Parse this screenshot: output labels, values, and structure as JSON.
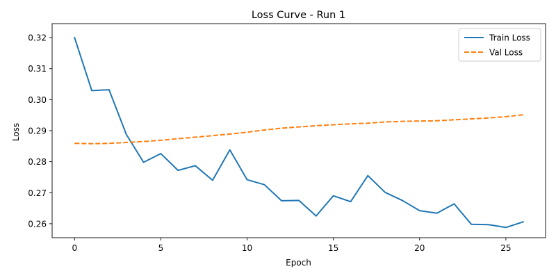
{
  "chart_data": {
    "type": "line",
    "title": "Loss Curve - Run 1",
    "xlabel": "Epoch",
    "ylabel": "Loss",
    "xlim": [
      -1.3,
      27.3
    ],
    "ylim": [
      0.2555,
      0.3245
    ],
    "xticks": [
      0,
      5,
      10,
      15,
      20,
      25
    ],
    "yticks": [
      0.26,
      0.27,
      0.28,
      0.29,
      0.3,
      0.31,
      0.32
    ],
    "ytick_labels": [
      "0.26",
      "0.27",
      "0.28",
      "0.29",
      "0.30",
      "0.31",
      "0.32"
    ],
    "xtick_labels": [
      "0",
      "5",
      "10",
      "15",
      "20",
      "25"
    ],
    "legend_position": "top-right",
    "grid": false,
    "x": [
      0,
      1,
      2,
      3,
      4,
      5,
      6,
      7,
      8,
      9,
      10,
      11,
      12,
      13,
      14,
      15,
      16,
      17,
      18,
      19,
      20,
      21,
      22,
      23,
      24,
      25,
      26
    ],
    "series": [
      {
        "name": "Train Loss",
        "color": "#1f77b4",
        "style": "solid",
        "values": [
          0.32,
          0.3029,
          0.3032,
          0.2888,
          0.2798,
          0.2826,
          0.2772,
          0.2787,
          0.274,
          0.2838,
          0.2742,
          0.2726,
          0.2674,
          0.2675,
          0.2625,
          0.269,
          0.2671,
          0.2755,
          0.2701,
          0.2675,
          0.2642,
          0.2634,
          0.2664,
          0.2598,
          0.2597,
          0.2588,
          0.2606
        ]
      },
      {
        "name": "Val Loss",
        "color": "#ff7f0e",
        "style": "dashed",
        "values": [
          0.2859,
          0.2858,
          0.2859,
          0.2862,
          0.2865,
          0.2869,
          0.2874,
          0.2879,
          0.2884,
          0.2889,
          0.2895,
          0.2902,
          0.2908,
          0.2912,
          0.2916,
          0.2919,
          0.2922,
          0.2924,
          0.2928,
          0.293,
          0.2931,
          0.2932,
          0.2935,
          0.2938,
          0.2941,
          0.2945,
          0.2951
        ]
      }
    ]
  }
}
